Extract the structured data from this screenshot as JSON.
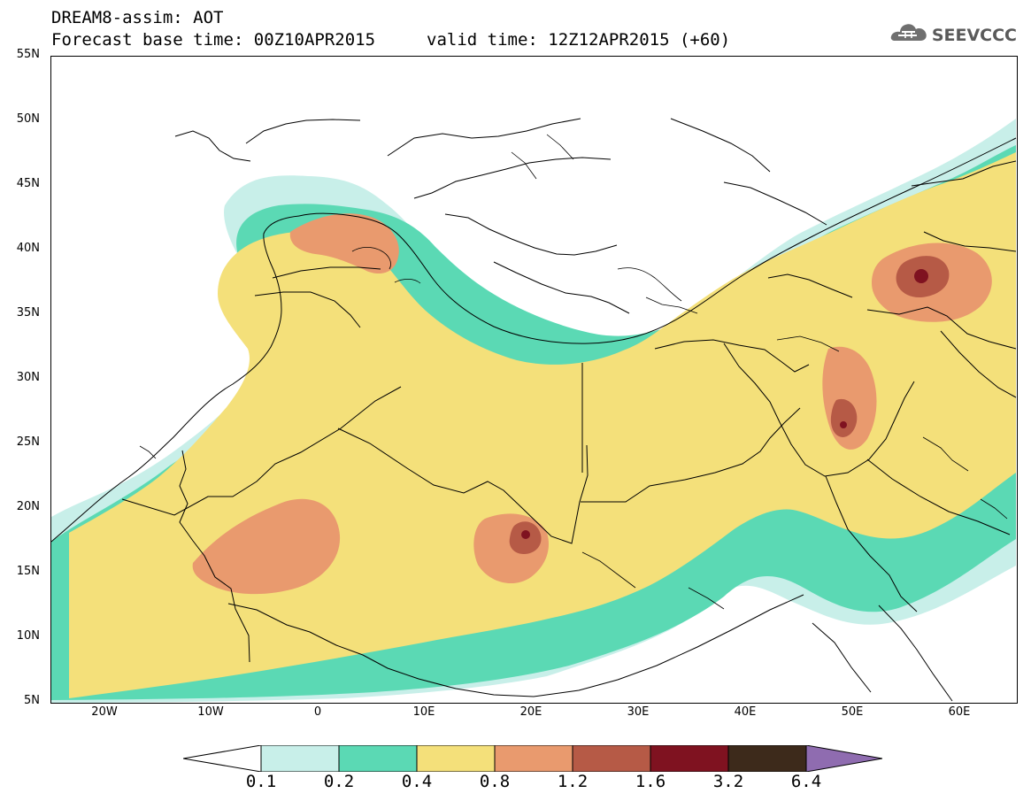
{
  "title": "DREAM8-assim: AOT",
  "forecast_base_label": "Forecast base time: 00Z10APR2015",
  "valid_time_label": "valid time: 12Z12APR2015 (+60)",
  "brand": "SEEVCCC",
  "colors": {
    "c01": "#c8efe9",
    "c02": "#5bd9b4",
    "c04": "#f4e07a",
    "c08": "#e99a6e",
    "c12": "#b65a46",
    "c16": "#7f1220",
    "c32": "#3d2a1b",
    "c64": "#8f6cb0",
    "line": "#000000",
    "brand": "#5a5a5a"
  },
  "map": {
    "lat_range": [
      5,
      55
    ],
    "lon_range": [
      -25,
      65
    ],
    "lat_labels": [
      "55N",
      "50N",
      "45N",
      "40N",
      "35N",
      "30N",
      "25N",
      "20N",
      "15N",
      "10N",
      "5N"
    ],
    "lon_labels": [
      "20W",
      "10W",
      "0",
      "10E",
      "20E",
      "30E",
      "40E",
      "50E",
      "60E"
    ]
  },
  "legend": {
    "ticks": [
      "0.1",
      "0.2",
      "0.4",
      "0.8",
      "1.2",
      "1.6",
      "3.2",
      "6.4"
    ]
  }
}
